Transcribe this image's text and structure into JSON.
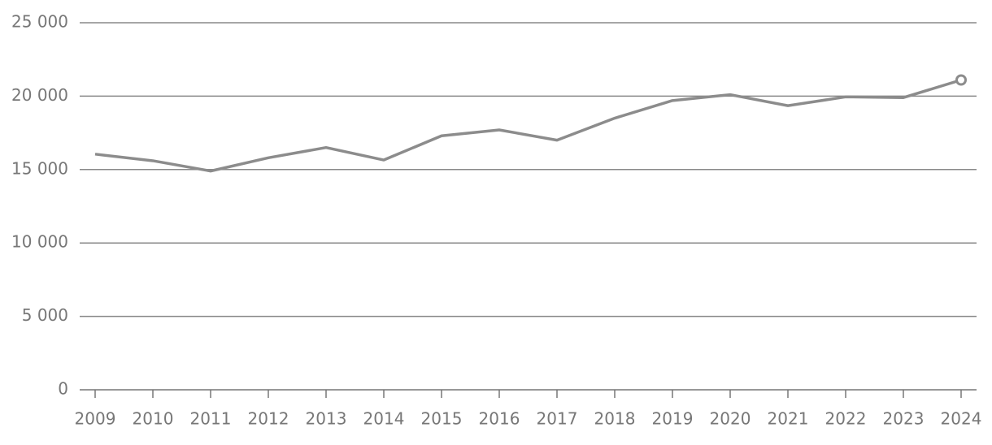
{
  "chart_data": {
    "type": "line",
    "categories": [
      "2009",
      "2010",
      "2011",
      "2012",
      "2013",
      "2014",
      "2015",
      "2016",
      "2017",
      "2018",
      "2019",
      "2020",
      "2021",
      "2022",
      "2023",
      "2024"
    ],
    "values": [
      16050,
      15600,
      14900,
      15800,
      16500,
      15650,
      17300,
      17700,
      17000,
      18500,
      19700,
      20100,
      19350,
      19950,
      19900,
      21100
    ],
    "color": "#8c8c8c",
    "ylim": [
      0,
      25000
    ],
    "yticks": [
      0,
      {
        "value": 5000,
        "label": "5 000"
      },
      {
        "value": 10000,
        "label": "10 000"
      },
      {
        "value": 15000,
        "label": "15 000"
      },
      {
        "value": 20000,
        "label": "20 000"
      },
      {
        "value": 25000,
        "label": "25 000"
      }
    ],
    "grid": true
  }
}
